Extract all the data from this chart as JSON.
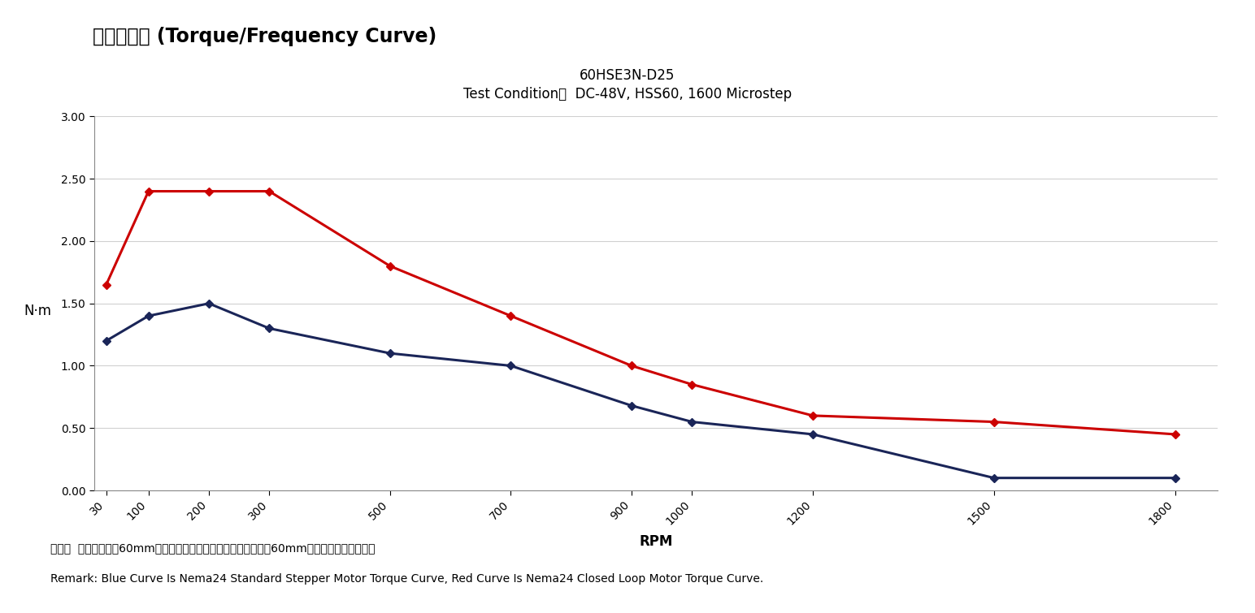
{
  "title_main": "60HSE3N-D25",
  "title_sub": "Test Condition：  DC-48V, HSS60, 1600 Microstep",
  "header_text": "矩频特性图 (Torque/Frequency Curve)",
  "xlabel": "RPM",
  "ylabel": "N·m",
  "ylim": [
    0,
    3.0
  ],
  "yticks": [
    0.0,
    0.5,
    1.0,
    1.5,
    2.0,
    2.5,
    3.0
  ],
  "x_positions": [
    30,
    100,
    200,
    300,
    500,
    700,
    900,
    1000,
    1200,
    1500,
    1800
  ],
  "x_labels": [
    "30",
    "100",
    "200",
    "300",
    "500",
    "700",
    "900",
    "1000",
    "1200",
    "1500",
    "1800"
  ],
  "blue_curve": [
    1.2,
    1.4,
    1.5,
    1.3,
    1.1,
    1.0,
    0.68,
    0.55,
    0.45,
    0.1,
    0.1
  ],
  "red_curve": [
    1.65,
    2.4,
    2.4,
    2.4,
    1.8,
    1.4,
    1.0,
    0.85,
    0.6,
    0.55,
    0.45
  ],
  "blue_color": "#1a2558",
  "red_color": "#cc0000",
  "bg_color": "#ffffff",
  "grid_color": "#d0d0d0",
  "remark_zh": "备注：  蓝色曲线表示60mm普通电机的矩频特性图，红色曲线表示60mm闭环电机的矩频特性图",
  "remark_en": "Remark: Blue Curve Is Nema24 Standard Stepper Motor Torque Curve, Red Curve Is Nema24 Closed Loop Motor Torque Curve.",
  "marker_style": "D",
  "marker_size": 5,
  "line_width": 2.2,
  "icon_color": "#1565c0",
  "header_fontsize": 17,
  "title_fontsize": 12,
  "axis_label_fontsize": 12,
  "tick_fontsize": 10,
  "remark_fontsize": 10
}
